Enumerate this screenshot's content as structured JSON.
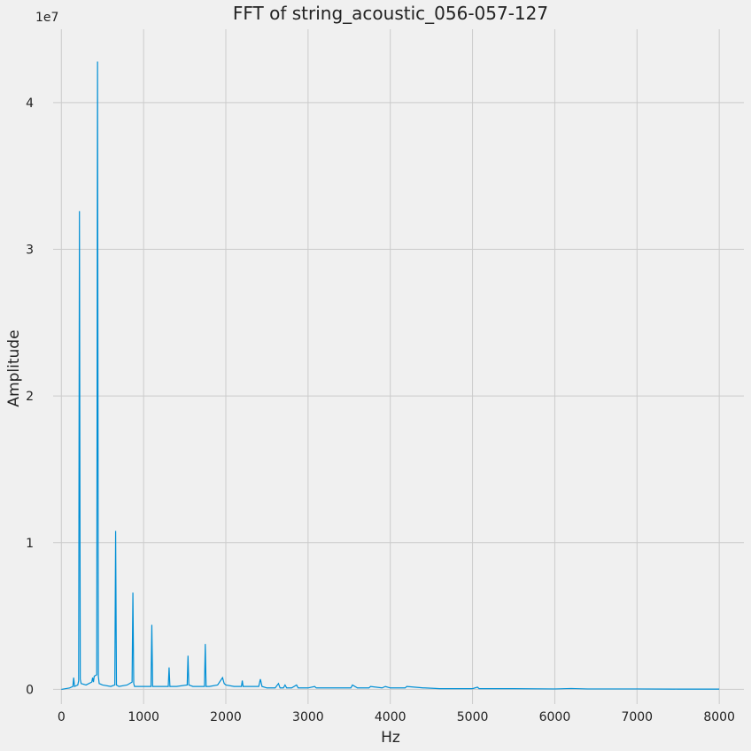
{
  "chart_data": {
    "type": "line",
    "title": "FFT of string_acoustic_056-057-127",
    "xlabel": "Hz",
    "ylabel": "Amplitude",
    "y_exponent_label": "1e7",
    "xlim": [
      -100,
      8300
    ],
    "ylim": [
      -1000000,
      45000000
    ],
    "xticks": [
      0,
      1000,
      2000,
      3000,
      4000,
      5000,
      6000,
      7000,
      8000
    ],
    "xtick_labels": [
      "0",
      "1000",
      "2000",
      "3000",
      "4000",
      "5000",
      "6000",
      "7000",
      "8000"
    ],
    "yticks": [
      0,
      10000000,
      20000000,
      30000000,
      40000000
    ],
    "ytick_labels": [
      "0",
      "1",
      "2",
      "3",
      "4"
    ],
    "grid": true,
    "line_color": "#008fd5",
    "series": [
      {
        "x": [
          0,
          100,
          140,
          150,
          160,
          200,
          210,
          220,
          230,
          240,
          300,
          370,
          380,
          390,
          400,
          430,
          440,
          450,
          460,
          500,
          600,
          650,
          660,
          670,
          700,
          800,
          860,
          870,
          880,
          890,
          900,
          1000,
          1090,
          1100,
          1110,
          1200,
          1300,
          1310,
          1320,
          1400,
          1530,
          1540,
          1550,
          1600,
          1740,
          1750,
          1760,
          1800,
          1900,
          1960,
          1980,
          2000,
          2100,
          2190,
          2200,
          2210,
          2300,
          2400,
          2420,
          2440,
          2500,
          2600,
          2640,
          2660,
          2700,
          2720,
          2740,
          2800,
          2860,
          2880,
          3000,
          3080,
          3100,
          3300,
          3520,
          3540,
          3600,
          3740,
          3760,
          3900,
          3940,
          4000,
          4180,
          4200,
          4400,
          4420,
          4600,
          4800,
          5000,
          5060,
          5080,
          5200,
          5500,
          6000,
          6200,
          6400,
          7000,
          7500,
          8000
        ],
        "y": [
          0,
          100000,
          200000,
          800000,
          200000,
          300000,
          600000,
          32600000,
          700000,
          400000,
          300000,
          500000,
          800000,
          500000,
          900000,
          1000000,
          42800000,
          900000,
          400000,
          300000,
          200000,
          300000,
          10800000,
          300000,
          200000,
          300000,
          500000,
          6600000,
          400000,
          200000,
          200000,
          200000,
          200000,
          4400000,
          200000,
          200000,
          200000,
          1500000,
          200000,
          200000,
          300000,
          2300000,
          300000,
          200000,
          200000,
          3100000,
          200000,
          200000,
          300000,
          800000,
          400000,
          300000,
          200000,
          200000,
          600000,
          200000,
          200000,
          200000,
          700000,
          200000,
          100000,
          100000,
          400000,
          100000,
          100000,
          300000,
          100000,
          100000,
          300000,
          100000,
          100000,
          200000,
          100000,
          100000,
          100000,
          300000,
          100000,
          100000,
          200000,
          100000,
          200000,
          100000,
          100000,
          200000,
          100000,
          100000,
          50000,
          50000,
          50000,
          150000,
          50000,
          50000,
          50000,
          30000,
          60000,
          30000,
          30000,
          20000,
          20000
        ]
      }
    ]
  }
}
